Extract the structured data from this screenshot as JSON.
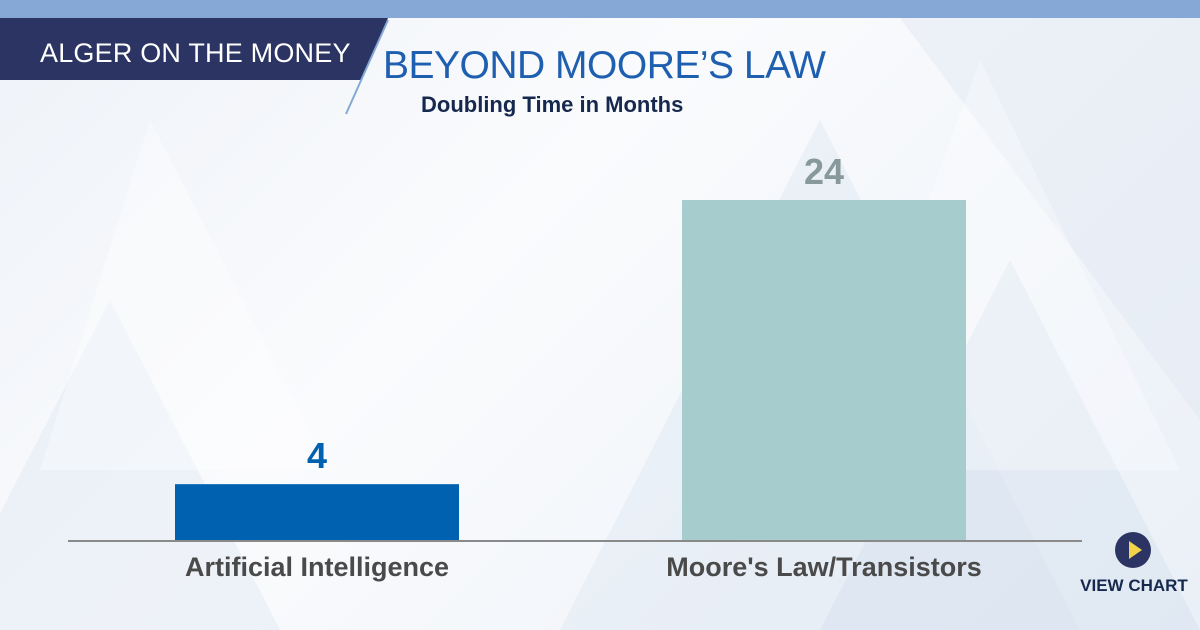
{
  "header": {
    "brand": "ALGER ON THE MONEY",
    "title": "BEYOND MOORE’S LAW",
    "subtitle": "Doubling Time in Months"
  },
  "view_chart": {
    "label": "VIEW CHART",
    "icon": "play-icon"
  },
  "colors": {
    "top_bar": "#86a8d6",
    "brand_bg": "#2b3463",
    "title": "#1f5fb0",
    "subtitle": "#17284f",
    "axis": "#8a8a8a",
    "category_label": "#4a4a4a",
    "play_circle": "#2b3463",
    "play_triangle": "#f2d34a",
    "view_chart_text": "#17284f"
  },
  "chart_data": {
    "type": "bar",
    "title": "BEYOND MOORE’S LAW",
    "subtitle": "Doubling Time in Months",
    "categories": [
      "Artificial Intelligence",
      "Moore's Law/Transistors"
    ],
    "values": [
      4,
      24
    ],
    "data_labels": [
      "4",
      "24"
    ],
    "bar_colors": [
      "#0061b0",
      "#a6cccd"
    ],
    "label_colors": [
      "#0061b0",
      "#87999c"
    ],
    "ylim": [
      0,
      24
    ],
    "grid": false,
    "legend": "none"
  }
}
